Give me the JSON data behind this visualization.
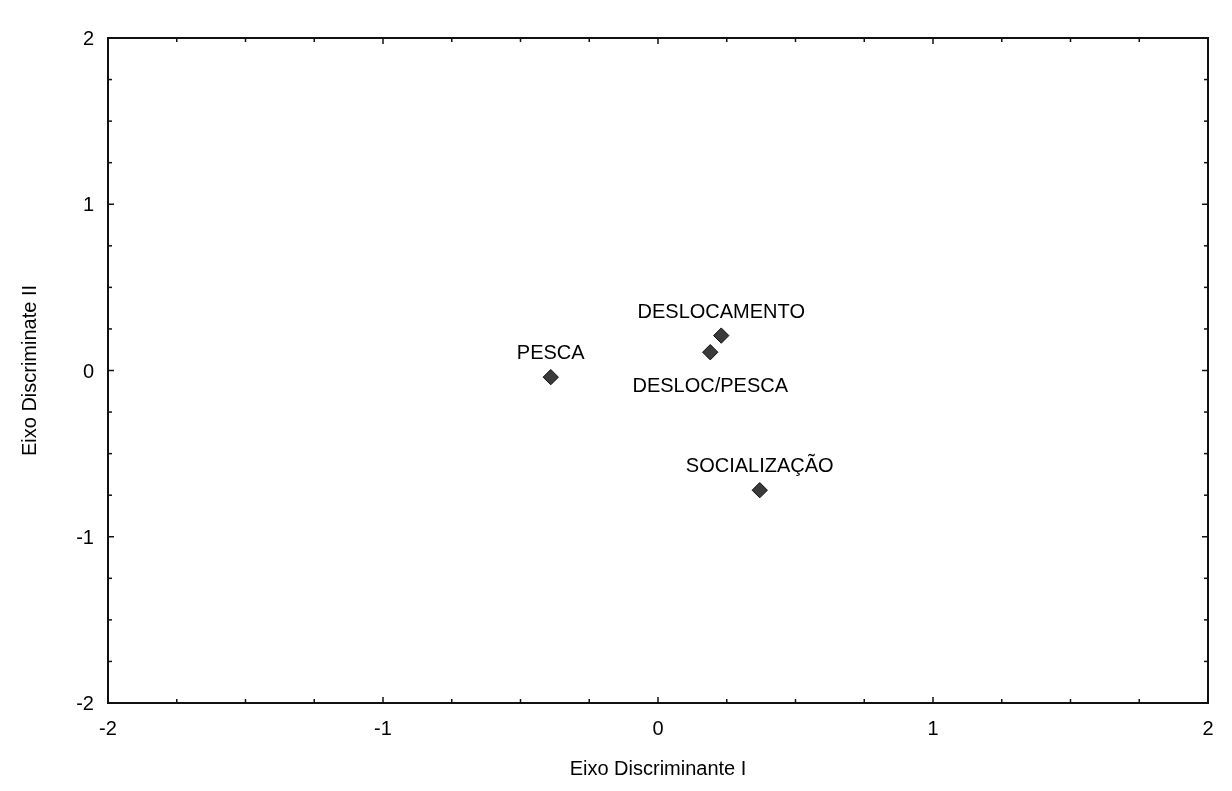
{
  "chart_data": {
    "type": "scatter",
    "xlabel": "Eixo Discriminante I",
    "ylabel": "Eixo Discriminate II",
    "xlim": [
      -2,
      2
    ],
    "ylim": [
      -2,
      2
    ],
    "xticks": [
      -2,
      {
        "value": -1.75,
        "label": null
      },
      {
        "value": -1.5,
        "label": null
      },
      {
        "value": -1.25,
        "label": null
      },
      -1,
      {
        "value": -0.75,
        "label": null
      },
      {
        "value": -0.5,
        "label": null
      },
      {
        "value": -0.25,
        "label": null
      },
      0,
      {
        "value": 0.25,
        "label": null
      },
      {
        "value": 0.5,
        "label": null
      },
      {
        "value": 0.75,
        "label": null
      },
      1,
      {
        "value": 1.25,
        "label": null
      },
      {
        "value": 1.5,
        "label": null
      },
      {
        "value": 1.75,
        "label": null
      },
      2
    ],
    "yticks": [
      -2,
      {
        "value": -1.75,
        "label": null
      },
      {
        "value": -1.5,
        "label": null
      },
      {
        "value": -1.25,
        "label": null
      },
      -1,
      {
        "value": -0.75,
        "label": null
      },
      {
        "value": -0.5,
        "label": null
      },
      {
        "value": -0.25,
        "label": null
      },
      0,
      {
        "value": 0.25,
        "label": null
      },
      {
        "value": 0.5,
        "label": null
      },
      {
        "value": 0.75,
        "label": null
      },
      1,
      {
        "value": 1.25,
        "label": null
      },
      {
        "value": 1.5,
        "label": null
      },
      {
        "value": 1.75,
        "label": null
      },
      2
    ],
    "marker": "diamond",
    "grid": false,
    "series": [
      {
        "color": "#3a3a3a",
        "x": [
          -0.39,
          0.19,
          0.23,
          0.37
        ],
        "values": [
          -0.04,
          0.11,
          0.21,
          -0.72
        ]
      }
    ],
    "annotations": [
      {
        "text": "PESCA",
        "x": -0.39,
        "y": -0.04
      },
      {
        "text": "DESLOC/PESCA",
        "x": 0.19,
        "y": 0.11
      },
      {
        "text": "DESLOCAMENTO",
        "x": 0.23,
        "y": 0.21
      },
      {
        "text": "SOCIALIZAÇÃO",
        "x": 0.37,
        "y": -0.72
      }
    ]
  }
}
